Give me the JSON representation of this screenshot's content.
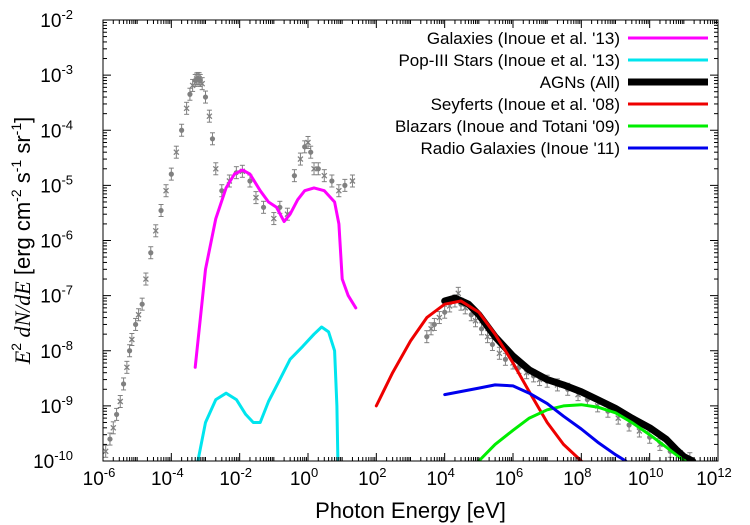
{
  "chart_data": {
    "type": "line",
    "xlabel": "Photon Energy [eV]",
    "ylabel": {
      "parts": [
        "E",
        "2",
        " dN/dE",
        " [erg cm",
        "-2",
        " s",
        "-1",
        " sr",
        "-1",
        "]"
      ]
    },
    "x_scale": "log",
    "y_scale": "log",
    "xlim": [
      1e-06,
      1000000000000.0
    ],
    "ylim": [
      1e-10,
      0.01
    ],
    "x_ticks": [
      {
        "base": "10",
        "exp": "-6",
        "value": 1e-06
      },
      {
        "base": "10",
        "exp": "-4",
        "value": 0.0001
      },
      {
        "base": "10",
        "exp": "-2",
        "value": 0.01
      },
      {
        "base": "10",
        "exp": "0",
        "value": 1
      },
      {
        "base": "10",
        "exp": "2",
        "value": 100.0
      },
      {
        "base": "10",
        "exp": "4",
        "value": 10000.0
      },
      {
        "base": "10",
        "exp": "6",
        "value": 1000000.0
      },
      {
        "base": "10",
        "exp": "8",
        "value": 100000000.0
      },
      {
        "base": "10",
        "exp": "10",
        "value": 10000000000.0
      },
      {
        "base": "10",
        "exp": "12",
        "value": 1000000000000.0
      }
    ],
    "y_ticks": [
      {
        "base": "10",
        "exp": "-10",
        "value": 1e-10
      },
      {
        "base": "10",
        "exp": "-9",
        "value": 1e-09
      },
      {
        "base": "10",
        "exp": "-8",
        "value": 1e-08
      },
      {
        "base": "10",
        "exp": "-7",
        "value": 1e-07
      },
      {
        "base": "10",
        "exp": "-6",
        "value": 1e-06
      },
      {
        "base": "10",
        "exp": "-5",
        "value": 1e-05
      },
      {
        "base": "10",
        "exp": "-4",
        "value": 0.0001
      },
      {
        "base": "10",
        "exp": "-3",
        "value": 0.001
      },
      {
        "base": "10",
        "exp": "-2",
        "value": 0.01
      }
    ],
    "legend_position": "top-right",
    "series": [
      {
        "name": "Galaxies (Inoue et al. '13)",
        "color": "#ff00ff",
        "width": 3,
        "points": [
          [
            0.0005,
            5e-09
          ],
          [
            0.001,
            3e-07
          ],
          [
            0.002,
            2.5e-06
          ],
          [
            0.004,
            9e-06
          ],
          [
            0.007,
            1.6e-05
          ],
          [
            0.012,
            1.9e-05
          ],
          [
            0.02,
            1.6e-05
          ],
          [
            0.04,
            8e-06
          ],
          [
            0.07,
            5e-06
          ],
          [
            0.12,
            4e-06
          ],
          [
            0.2,
            2.2e-06
          ],
          [
            0.3,
            3e-06
          ],
          [
            0.5,
            5.5e-06
          ],
          [
            0.8,
            8e-06
          ],
          [
            1.5,
            9e-06
          ],
          [
            3,
            8e-06
          ],
          [
            6,
            5e-06
          ],
          [
            8,
            2e-06
          ],
          [
            10,
            2e-07
          ],
          [
            15,
            1e-07
          ],
          [
            25,
            6e-08
          ]
        ]
      },
      {
        "name": "Pop-III Stars (Inoue et al. '13)",
        "color": "#00e5ee",
        "width": 3,
        "points": [
          [
            0.0006,
            1e-10
          ],
          [
            0.001,
            5e-10
          ],
          [
            0.002,
            1.3e-09
          ],
          [
            0.004,
            1.7e-09
          ],
          [
            0.008,
            1.3e-09
          ],
          [
            0.015,
            7e-10
          ],
          [
            0.025,
            5e-10
          ],
          [
            0.04,
            5e-10
          ],
          [
            0.07,
            1.2e-09
          ],
          [
            0.15,
            3e-09
          ],
          [
            0.3,
            7e-09
          ],
          [
            0.7,
            1.2e-08
          ],
          [
            1.5,
            2e-08
          ],
          [
            2.5,
            2.7e-08
          ],
          [
            4,
            2.2e-08
          ],
          [
            6,
            1e-08
          ],
          [
            7,
            1e-09
          ],
          [
            7.5,
            1e-10
          ]
        ]
      },
      {
        "name": "AGNs (All)",
        "color": "#000000",
        "width": 7,
        "points": [
          [
            10000.0,
            8e-08
          ],
          [
            20000.0,
            9e-08
          ],
          [
            50000.0,
            7e-08
          ],
          [
            100000.0,
            4.5e-08
          ],
          [
            300000.0,
            1.8e-08
          ],
          [
            1000000.0,
            8e-09
          ],
          [
            3000000.0,
            4.5e-09
          ],
          [
            10000000.0,
            3e-09
          ],
          [
            30000000.0,
            2.4e-09
          ],
          [
            100000000.0,
            1.8e-09
          ],
          [
            300000000.0,
            1.3e-09
          ],
          [
            1000000000.0,
            9e-10
          ],
          [
            3000000000.0,
            6e-10
          ],
          [
            10000000000.0,
            4e-10
          ],
          [
            30000000000.0,
            2.5e-10
          ],
          [
            60000000000.0,
            1.6e-10
          ],
          [
            100000000000.0,
            1.2e-10
          ],
          [
            180000000000.0,
            1e-10
          ]
        ]
      },
      {
        "name": "Seyferts (Inoue et al. '08)",
        "color": "#ee0000",
        "width": 3,
        "points": [
          [
            100,
            1e-09
          ],
          [
            300,
            4e-09
          ],
          [
            1000,
            1.5e-08
          ],
          [
            3000,
            4e-08
          ],
          [
            10000.0,
            7e-08
          ],
          [
            30000.0,
            8e-08
          ],
          [
            100000.0,
            5e-08
          ],
          [
            300000.0,
            2e-08
          ],
          [
            1000000.0,
            6e-09
          ],
          [
            3000000.0,
            1.8e-09
          ],
          [
            10000000.0,
            5e-10
          ],
          [
            30000000.0,
            2e-10
          ],
          [
            100000000.0,
            1e-10
          ]
        ]
      },
      {
        "name": "Blazars (Inoue and Totani '09)",
        "color": "#00ee00",
        "width": 3,
        "points": [
          [
            100000.0,
            1e-10
          ],
          [
            300000.0,
            2e-10
          ],
          [
            1000000.0,
            3.6e-10
          ],
          [
            3000000.0,
            6e-10
          ],
          [
            10000000.0,
            8.5e-10
          ],
          [
            30000000.0,
            1e-09
          ],
          [
            100000000.0,
            1.05e-09
          ],
          [
            300000000.0,
            9.5e-10
          ],
          [
            1000000000.0,
            7.5e-10
          ],
          [
            3000000000.0,
            5e-10
          ],
          [
            10000000000.0,
            3e-10
          ],
          [
            30000000000.0,
            1.8e-10
          ],
          [
            70000000000.0,
            1.2e-10
          ],
          [
            110000000000.0,
            1e-10
          ]
        ]
      },
      {
        "name": "Radio Galaxies (Inoue '11)",
        "color": "#0000ee",
        "width": 3,
        "points": [
          [
            10000.0,
            1.6e-09
          ],
          [
            100000.0,
            2.1e-09
          ],
          [
            300000.0,
            2.4e-09
          ],
          [
            1000000.0,
            2.3e-09
          ],
          [
            3000000.0,
            1.7e-09
          ],
          [
            10000000.0,
            1.1e-09
          ],
          [
            30000000.0,
            6.5e-10
          ],
          [
            100000000.0,
            3.8e-10
          ],
          [
            300000000.0,
            2.2e-10
          ],
          [
            1000000000.0,
            1.3e-10
          ],
          [
            2000000000.0,
            1e-10
          ]
        ]
      }
    ],
    "data_points": {
      "color": "#808080",
      "points": [
        [
          1.2e-06,
          1.5e-10
        ],
        [
          1.6e-06,
          2.5e-10
        ],
        [
          2e-06,
          4e-10
        ],
        [
          2.5e-06,
          7e-10
        ],
        [
          3.2e-06,
          1.2e-09
        ],
        [
          4e-06,
          2.5e-09
        ],
        [
          5e-06,
          5e-09
        ],
        [
          6e-06,
          1e-08
        ],
        [
          7e-06,
          1.6e-08
        ],
        [
          9e-06,
          3e-08
        ],
        [
          1.1e-05,
          4.5e-08
        ],
        [
          1.4e-05,
          7e-08
        ],
        [
          1.8e-05,
          2e-07
        ],
        [
          2.5e-05,
          6e-07
        ],
        [
          3.5e-05,
          1.5e-06
        ],
        [
          5e-05,
          3.5e-06
        ],
        [
          7e-05,
          8e-06
        ],
        [
          0.0001,
          1.6e-05
        ],
        [
          0.00014,
          4e-05
        ],
        [
          0.0002,
          0.0001
        ],
        [
          0.00028,
          0.00025
        ],
        [
          0.00035,
          0.00045
        ],
        [
          0.00042,
          0.00065
        ],
        [
          0.0005,
          0.0008
        ],
        [
          0.00055,
          0.00085
        ],
        [
          0.0006,
          0.00087
        ],
        [
          0.00065,
          0.00086
        ],
        [
          0.0007,
          0.0008
        ],
        [
          0.0008,
          0.0007
        ],
        [
          0.001,
          0.0004
        ],
        [
          0.0013,
          0.00018
        ],
        [
          0.0016,
          7e-05
        ],
        [
          0.002,
          2e-05
        ],
        [
          0.003,
          8e-06
        ],
        [
          0.005,
          1.2e-05
        ],
        [
          0.008,
          1.7e-05
        ],
        [
          0.012,
          1.8e-05
        ],
        [
          0.02,
          1.2e-05
        ],
        [
          0.03,
          6e-06
        ],
        [
          0.05,
          4e-06
        ],
        [
          0.1,
          2.5e-06
        ],
        [
          0.15,
          4e-06
        ],
        [
          0.25,
          3e-06
        ],
        [
          0.4,
          1.5e-05
        ],
        [
          0.6,
          3e-05
        ],
        [
          0.8,
          5e-05
        ],
        [
          1.0,
          6e-05
        ],
        [
          1.2,
          4e-05
        ],
        [
          1.5,
          2e-05
        ],
        [
          2,
          2e-05
        ],
        [
          3,
          1.5e-05
        ],
        [
          5,
          1.2e-05
        ],
        [
          8,
          8e-06
        ],
        [
          12,
          1e-05
        ],
        [
          20,
          1.2e-05
        ],
        [
          3000,
          1.8e-08
        ],
        [
          4000,
          2.5e-08
        ],
        [
          5000,
          3e-08
        ],
        [
          7000,
          4e-08
        ],
        [
          10000.0,
          5e-08
        ],
        [
          14000.0,
          6.5e-08
        ],
        [
          20000.0,
          8e-08
        ],
        [
          25000.0,
          1.1e-07
        ],
        [
          30000.0,
          7e-08
        ],
        [
          40000.0,
          6e-08
        ],
        [
          60000.0,
          4.5e-08
        ],
        [
          80000.0,
          3.5e-08
        ],
        [
          120000.0,
          2.5e-08
        ],
        [
          180000.0,
          1.8e-08
        ],
        [
          250000.0,
          1.3e-08
        ],
        [
          400000.0,
          9e-09
        ],
        [
          600000.0,
          7e-09
        ],
        [
          1000000.0,
          6e-09
        ],
        [
          1500000.0,
          5e-09
        ],
        [
          2500000.0,
          4e-09
        ],
        [
          4000000.0,
          3.5e-09
        ],
        [
          6000000.0,
          3e-09
        ],
        [
          10000000.0,
          2.8e-09
        ],
        [
          20000000.0,
          2.4e-09
        ],
        [
          40000000.0,
          2e-09
        ],
        [
          80000000.0,
          1.6e-09
        ],
        [
          150000000.0,
          1.3e-09
        ],
        [
          300000000.0,
          1e-09
        ],
        [
          600000000.0,
          8e-10
        ],
        [
          1200000000.0,
          6e-10
        ],
        [
          2500000000.0,
          4.5e-10
        ],
        [
          5000000000.0,
          3.5e-10
        ],
        [
          10000000000.0,
          2.7e-10
        ],
        [
          20000000000.0,
          2e-10
        ],
        [
          40000000000.0,
          1.5e-10
        ],
        [
          80000000000.0,
          1.2e-10
        ],
        [
          150000000000.0,
          1.1e-10
        ]
      ]
    }
  }
}
